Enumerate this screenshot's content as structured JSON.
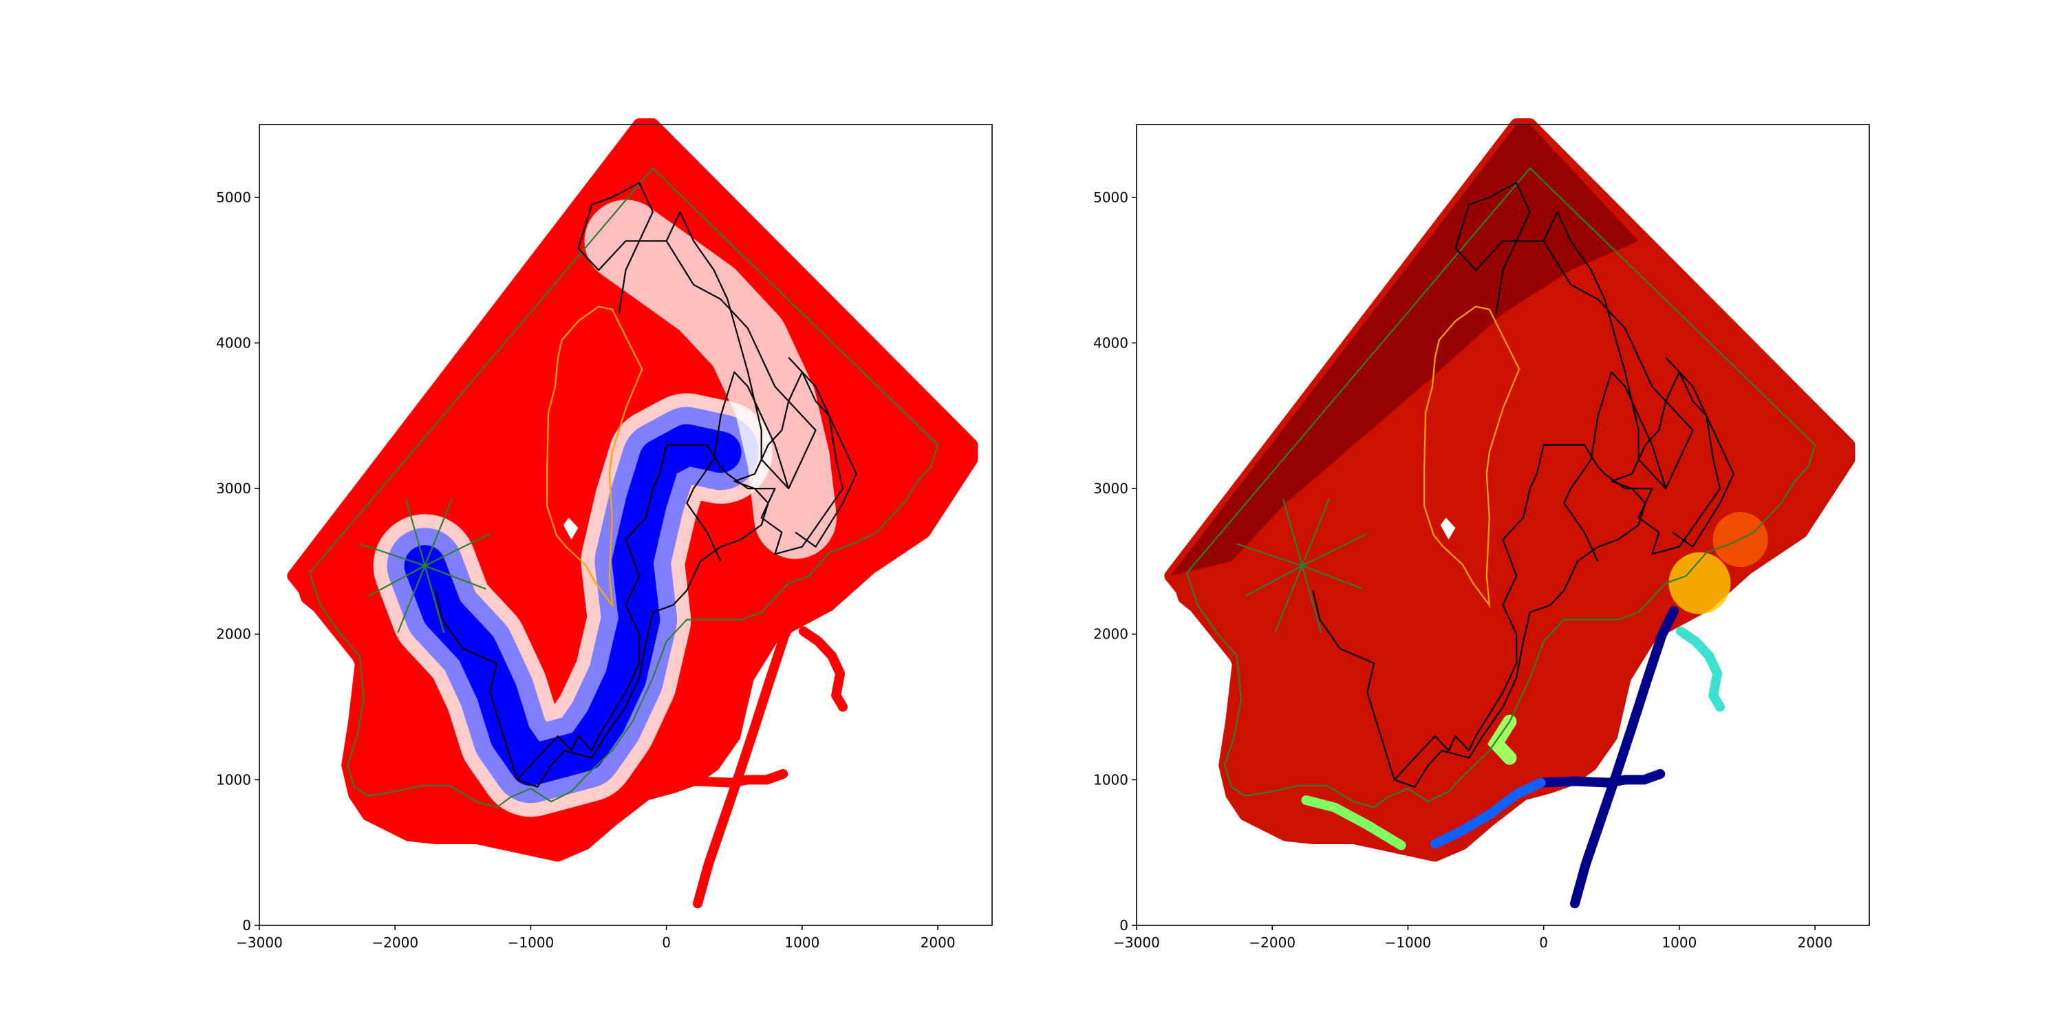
{
  "chart_data": [
    {
      "type": "scatter",
      "title": "",
      "xlabel": "",
      "ylabel": "",
      "xlim": [
        -3000,
        2400
      ],
      "ylim": [
        0,
        5500
      ],
      "x_ticks": [
        "−3000",
        "−2000",
        "−1000",
        "0",
        "1000",
        "2000"
      ],
      "y_ticks": [
        "0",
        "1000",
        "2000",
        "3000",
        "4000",
        "5000"
      ],
      "grid": false,
      "colormap": "bwr",
      "colors": {
        "background": "#ff0000",
        "low": "#0000ff",
        "mid": "#ffffff",
        "boundary": "#2e7d32",
        "zone": "#ffa500",
        "channel": "#000000"
      }
    },
    {
      "type": "scatter",
      "title": "",
      "xlabel": "",
      "ylabel": "",
      "xlim": [
        -3000,
        2400
      ],
      "ylim": [
        0,
        5500
      ],
      "x_ticks": [
        "−3000",
        "−2000",
        "−1000",
        "0",
        "1000",
        "2000"
      ],
      "y_ticks": [
        "0",
        "1000",
        "2000",
        "3000",
        "4000",
        "5000"
      ],
      "grid": false,
      "colormap": "jet",
      "colors": {
        "high": "#8b0000",
        "mid": "#cc1100",
        "low": "#00008b",
        "boundary": "#2e7d32",
        "zone": "#ffa500",
        "channel": "#000000"
      }
    }
  ]
}
